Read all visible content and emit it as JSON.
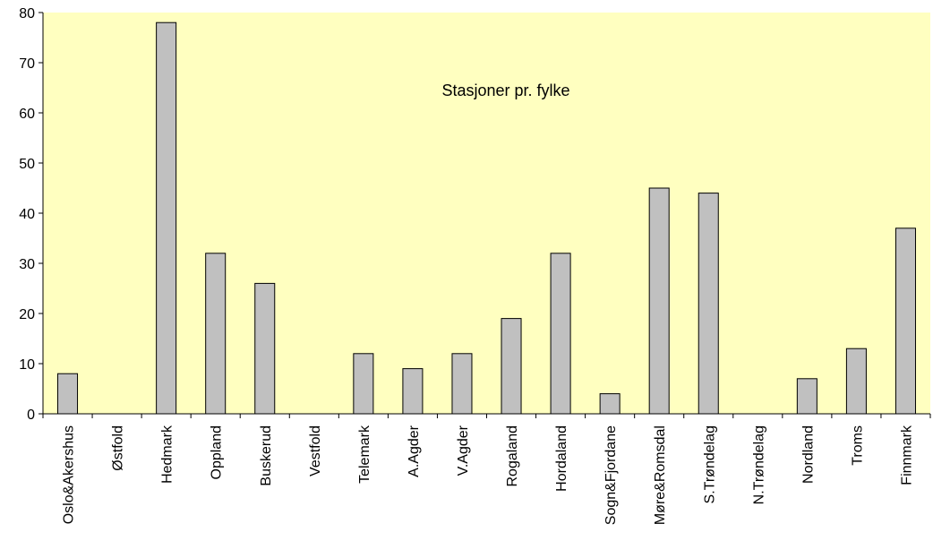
{
  "chart_data": {
    "type": "bar",
    "title": "Stasjoner pr. fylke",
    "xlabel": "",
    "ylabel": "",
    "ylim": [
      0,
      80
    ],
    "yticks": [
      0,
      10,
      20,
      30,
      40,
      50,
      60,
      70,
      80
    ],
    "grid": false,
    "legend": "none",
    "categories": [
      "Oslo&Akershus",
      "Østfold",
      "Hedmark",
      "Oppland",
      "Buskerud",
      "Vestfold",
      "Telemark",
      "A.Agder",
      "V.Agder",
      "Rogaland",
      "Hordaland",
      "Sogn&Fjordane",
      "Møre&Romsdal",
      "S.Trøndelag",
      "N.Trøndelag",
      "Nordland",
      "Troms",
      "Finnmark"
    ],
    "series": [
      {
        "values": [
          8,
          0,
          78,
          32,
          26,
          0,
          12,
          9,
          12,
          19,
          32,
          4,
          45,
          44,
          0,
          7,
          13,
          37
        ]
      }
    ],
    "colors": {
      "plot_background": "#ffffc0",
      "bar_fill": "#c0c0c0",
      "bar_stroke": "#000000",
      "axis": "#000000"
    }
  }
}
